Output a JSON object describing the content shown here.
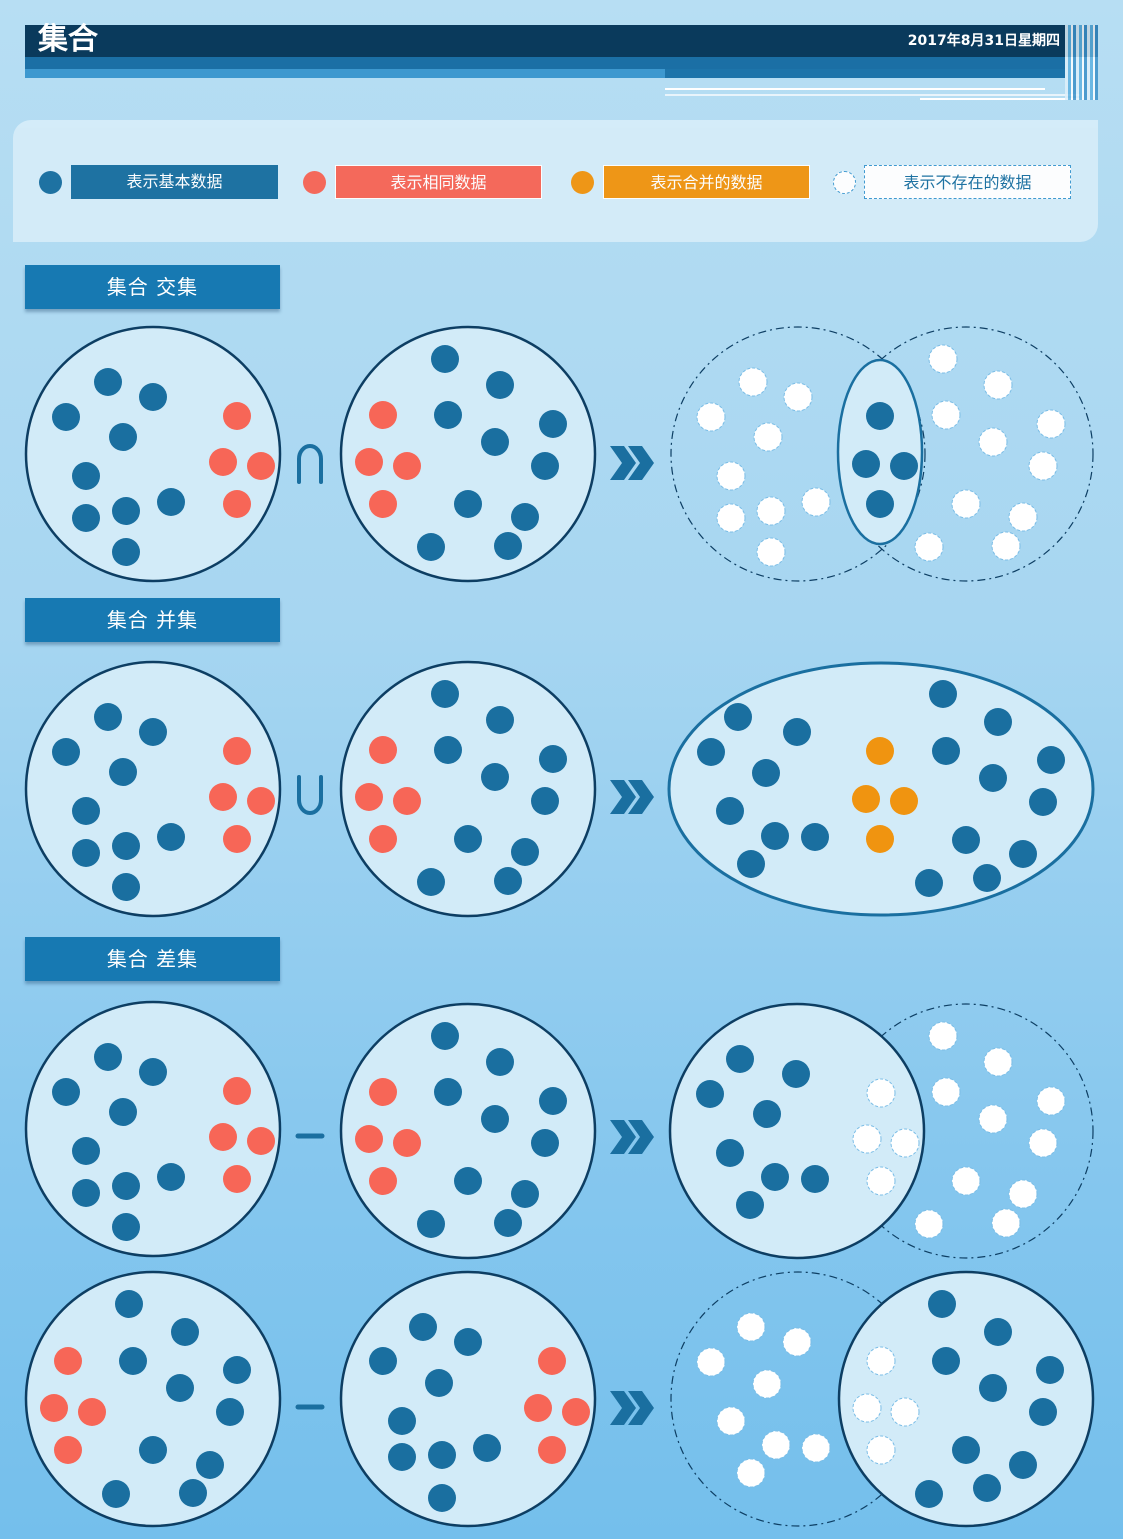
{
  "header": {
    "title": "集合",
    "date": "2017年8月31日星期四"
  },
  "colors": {
    "basic": "#1a6fa0",
    "same": "#f76657",
    "merged": "#f09410",
    "nonexistent": "#ffffff",
    "circle_fill": "#d2ebf8",
    "circle_stroke": "#0d3e63",
    "label_bg": "#1779b2"
  },
  "legend": {
    "basic": "表示基本数据",
    "same": "表示相同数据",
    "merged": "表示合并的数据",
    "nonexistent": "表示不存在的数据"
  },
  "sections": {
    "intersection": {
      "label": "集合 交集",
      "operator": "∩"
    },
    "union": {
      "label": "集合 并集",
      "operator": "∪"
    },
    "difference": {
      "label": "集合 差集",
      "operator": "−"
    }
  }
}
